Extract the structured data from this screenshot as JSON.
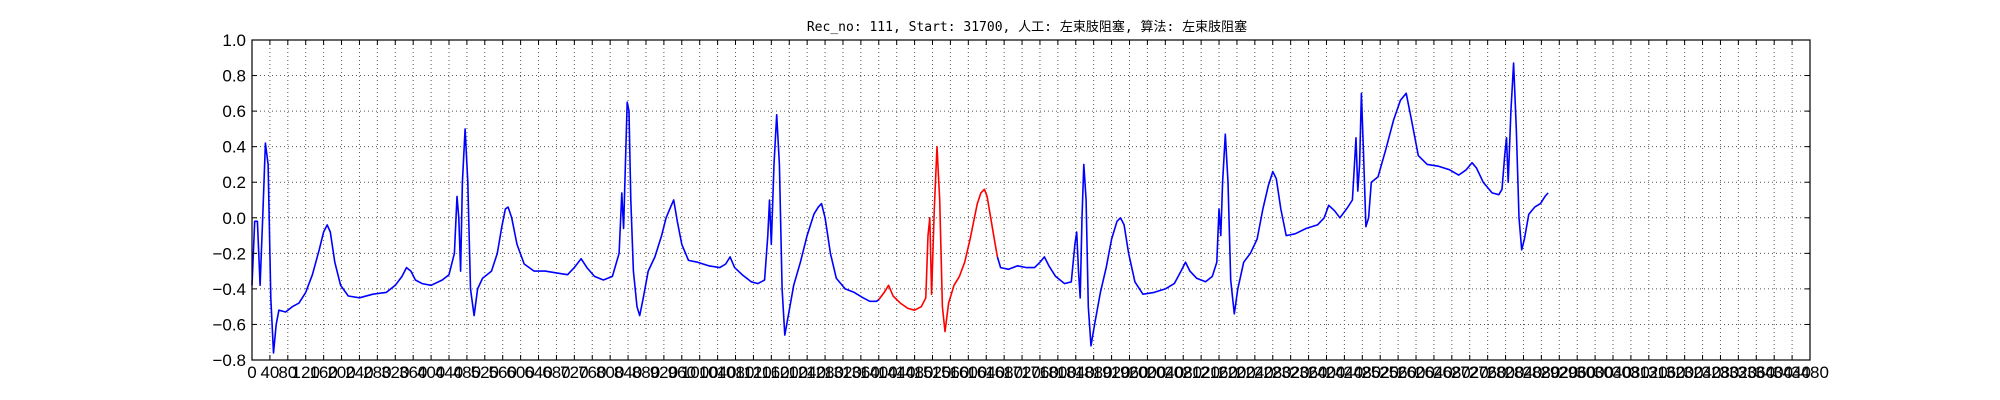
{
  "chart_data": {
    "type": "line",
    "title": "Rec_no: 111, Start: 31700, 人工: 左束肢阻塞, 算法: 左束肢阻塞",
    "xlabel": "",
    "ylabel": "",
    "xlim": [
      0,
      3480
    ],
    "ylim": [
      -0.8,
      1.0
    ],
    "yticks": [
      "−0.8",
      "−0.6",
      "−0.4",
      "−0.2",
      "0.0",
      "0.2",
      "0.4",
      "0.6",
      "0.8",
      "1.0"
    ],
    "xtick_labels": [
      "0",
      "40",
      "80",
      "120",
      "160",
      "200",
      "240",
      "280",
      "320",
      "360",
      "400",
      "440",
      "480",
      "520",
      "560",
      "600",
      "640",
      "680",
      "720",
      "760",
      "800",
      "840",
      "880",
      "920",
      "960",
      "1000",
      "1040",
      "1080",
      "1120",
      "1160",
      "1200",
      "1240",
      "1280",
      "1320",
      "1360",
      "1400",
      "1440",
      "1480",
      "1520",
      "1560",
      "1600",
      "1640",
      "1680",
      "1720",
      "1760",
      "1800",
      "1840",
      "1880",
      "1920",
      "1960",
      "2000",
      "2040",
      "2080",
      "2120",
      "2160",
      "2200",
      "2240",
      "2280",
      "2320",
      "2360",
      "2400",
      "2440",
      "2480",
      "2520",
      "2560",
      "2600",
      "2640",
      "2680",
      "2720",
      "2760",
      "2800",
      "2840",
      "2880",
      "2920",
      "2960",
      "3000",
      "3040",
      "3080",
      "3120",
      "3160",
      "3200",
      "3240",
      "3280",
      "3320",
      "3360",
      "3400",
      "3440",
      "3480"
    ],
    "grid": true,
    "colors": {
      "normal": "#0000ff",
      "highlight": "#ff0000"
    },
    "series": [
      {
        "color": "blue",
        "points": [
          [
            0,
            -0.38
          ],
          [
            6,
            -0.02
          ],
          [
            12,
            -0.02
          ],
          [
            18,
            -0.38
          ],
          [
            24,
            0.0
          ],
          [
            30,
            0.42
          ],
          [
            36,
            0.3
          ],
          [
            42,
            -0.45
          ],
          [
            48,
            -0.76
          ],
          [
            54,
            -0.6
          ],
          [
            60,
            -0.52
          ],
          [
            75,
            -0.53
          ],
          [
            90,
            -0.5
          ],
          [
            105,
            -0.48
          ],
          [
            120,
            -0.42
          ],
          [
            135,
            -0.32
          ],
          [
            150,
            -0.18
          ],
          [
            160,
            -0.08
          ],
          [
            168,
            -0.04
          ],
          [
            175,
            -0.08
          ],
          [
            185,
            -0.25
          ],
          [
            198,
            -0.38
          ],
          [
            215,
            -0.44
          ],
          [
            240,
            -0.45
          ],
          [
            270,
            -0.43
          ],
          [
            300,
            -0.42
          ],
          [
            320,
            -0.38
          ],
          [
            335,
            -0.33
          ],
          [
            345,
            -0.28
          ],
          [
            355,
            -0.3
          ],
          [
            365,
            -0.35
          ],
          [
            380,
            -0.37
          ],
          [
            400,
            -0.38
          ],
          [
            425,
            -0.35
          ],
          [
            440,
            -0.32
          ],
          [
            452,
            -0.2
          ],
          [
            458,
            0.12
          ],
          [
            462,
            0.0
          ],
          [
            466,
            -0.3
          ],
          [
            470,
            0.2
          ],
          [
            476,
            0.5
          ],
          [
            482,
            0.2
          ],
          [
            488,
            -0.4
          ],
          [
            496,
            -0.55
          ],
          [
            504,
            -0.4
          ],
          [
            515,
            -0.34
          ],
          [
            535,
            -0.3
          ],
          [
            548,
            -0.2
          ],
          [
            558,
            -0.05
          ],
          [
            566,
            0.05
          ],
          [
            572,
            0.06
          ],
          [
            580,
            0.0
          ],
          [
            592,
            -0.15
          ],
          [
            608,
            -0.26
          ],
          [
            630,
            -0.3
          ],
          [
            655,
            -0.3
          ],
          [
            680,
            -0.31
          ],
          [
            705,
            -0.32
          ],
          [
            720,
            -0.28
          ],
          [
            735,
            -0.23
          ],
          [
            748,
            -0.28
          ],
          [
            765,
            -0.33
          ],
          [
            785,
            -0.35
          ],
          [
            805,
            -0.33
          ],
          [
            820,
            -0.2
          ],
          [
            826,
            0.14
          ],
          [
            830,
            -0.06
          ],
          [
            834,
            0.3
          ],
          [
            838,
            0.65
          ],
          [
            842,
            0.6
          ],
          [
            846,
            0.1
          ],
          [
            852,
            -0.3
          ],
          [
            860,
            -0.5
          ],
          [
            866,
            -0.55
          ],
          [
            874,
            -0.45
          ],
          [
            885,
            -0.3
          ],
          [
            900,
            -0.22
          ],
          [
            915,
            -0.1
          ],
          [
            925,
            0.0
          ],
          [
            935,
            0.06
          ],
          [
            942,
            0.1
          ],
          [
            950,
            -0.02
          ],
          [
            960,
            -0.15
          ],
          [
            975,
            -0.24
          ],
          [
            995,
            -0.25
          ],
          [
            1020,
            -0.27
          ],
          [
            1045,
            -0.28
          ],
          [
            1058,
            -0.26
          ],
          [
            1068,
            -0.22
          ],
          [
            1078,
            -0.28
          ],
          [
            1095,
            -0.32
          ],
          [
            1115,
            -0.36
          ],
          [
            1130,
            -0.37
          ],
          [
            1145,
            -0.35
          ],
          [
            1152,
            -0.1
          ],
          [
            1156,
            0.1
          ],
          [
            1160,
            -0.15
          ],
          [
            1166,
            0.3
          ],
          [
            1172,
            0.58
          ],
          [
            1178,
            0.3
          ],
          [
            1184,
            -0.4
          ],
          [
            1190,
            -0.66
          ],
          [
            1198,
            -0.55
          ],
          [
            1210,
            -0.38
          ],
          [
            1225,
            -0.25
          ],
          [
            1240,
            -0.1
          ],
          [
            1255,
            0.02
          ],
          [
            1265,
            0.06
          ],
          [
            1272,
            0.08
          ],
          [
            1280,
            0.0
          ],
          [
            1292,
            -0.2
          ],
          [
            1305,
            -0.34
          ],
          [
            1325,
            -0.4
          ],
          [
            1345,
            -0.42
          ],
          [
            1365,
            -0.45
          ],
          [
            1380,
            -0.47
          ],
          [
            1395,
            -0.47
          ],
          [
            1400,
            -0.46
          ]
        ]
      },
      {
        "color": "red",
        "points": [
          [
            1400,
            -0.46
          ],
          [
            1412,
            -0.42
          ],
          [
            1422,
            -0.38
          ],
          [
            1432,
            -0.44
          ],
          [
            1448,
            -0.48
          ],
          [
            1465,
            -0.51
          ],
          [
            1480,
            -0.52
          ],
          [
            1495,
            -0.5
          ],
          [
            1505,
            -0.45
          ],
          [
            1510,
            -0.1
          ],
          [
            1514,
            0.0
          ],
          [
            1518,
            -0.43
          ],
          [
            1524,
            0.05
          ],
          [
            1530,
            0.4
          ],
          [
            1536,
            0.1
          ],
          [
            1542,
            -0.5
          ],
          [
            1548,
            -0.64
          ],
          [
            1556,
            -0.48
          ],
          [
            1568,
            -0.38
          ],
          [
            1580,
            -0.33
          ],
          [
            1592,
            -0.25
          ],
          [
            1604,
            -0.12
          ],
          [
            1612,
            -0.02
          ],
          [
            1620,
            0.08
          ],
          [
            1628,
            0.14
          ],
          [
            1636,
            0.16
          ],
          [
            1642,
            0.12
          ],
          [
            1650,
            0.0
          ],
          [
            1658,
            -0.12
          ],
          [
            1665,
            -0.22
          ]
        ]
      },
      {
        "color": "blue",
        "points": [
          [
            1665,
            -0.22
          ],
          [
            1672,
            -0.28
          ],
          [
            1690,
            -0.29
          ],
          [
            1710,
            -0.27
          ],
          [
            1730,
            -0.28
          ],
          [
            1748,
            -0.28
          ],
          [
            1760,
            -0.25
          ],
          [
            1770,
            -0.22
          ],
          [
            1780,
            -0.27
          ],
          [
            1795,
            -0.33
          ],
          [
            1815,
            -0.37
          ],
          [
            1830,
            -0.36
          ],
          [
            1838,
            -0.15
          ],
          [
            1842,
            -0.08
          ],
          [
            1846,
            -0.3
          ],
          [
            1850,
            -0.45
          ],
          [
            1854,
            0.0
          ],
          [
            1858,
            0.3
          ],
          [
            1863,
            0.1
          ],
          [
            1868,
            -0.5
          ],
          [
            1874,
            -0.72
          ],
          [
            1882,
            -0.6
          ],
          [
            1895,
            -0.42
          ],
          [
            1908,
            -0.28
          ],
          [
            1920,
            -0.12
          ],
          [
            1932,
            -0.02
          ],
          [
            1940,
            0.0
          ],
          [
            1948,
            -0.04
          ],
          [
            1958,
            -0.2
          ],
          [
            1972,
            -0.36
          ],
          [
            1990,
            -0.43
          ],
          [
            2015,
            -0.42
          ],
          [
            2040,
            -0.4
          ],
          [
            2060,
            -0.37
          ],
          [
            2075,
            -0.3
          ],
          [
            2085,
            -0.25
          ],
          [
            2095,
            -0.3
          ],
          [
            2110,
            -0.34
          ],
          [
            2130,
            -0.36
          ],
          [
            2145,
            -0.33
          ],
          [
            2155,
            -0.25
          ],
          [
            2160,
            0.05
          ],
          [
            2164,
            -0.1
          ],
          [
            2168,
            0.2
          ],
          [
            2174,
            0.47
          ],
          [
            2180,
            0.2
          ],
          [
            2186,
            -0.35
          ],
          [
            2194,
            -0.54
          ],
          [
            2202,
            -0.4
          ],
          [
            2215,
            -0.25
          ],
          [
            2230,
            -0.2
          ],
          [
            2245,
            -0.12
          ],
          [
            2258,
            0.05
          ],
          [
            2270,
            0.18
          ],
          [
            2280,
            0.26
          ],
          [
            2288,
            0.22
          ],
          [
            2298,
            0.05
          ],
          [
            2310,
            -0.1
          ],
          [
            2330,
            -0.09
          ],
          [
            2355,
            -0.06
          ],
          [
            2380,
            -0.04
          ],
          [
            2395,
            0.0
          ],
          [
            2405,
            0.07
          ],
          [
            2418,
            0.04
          ],
          [
            2430,
            0.0
          ],
          [
            2445,
            0.05
          ],
          [
            2458,
            0.1
          ],
          [
            2466,
            0.45
          ],
          [
            2470,
            0.15
          ],
          [
            2474,
            0.3
          ],
          [
            2478,
            0.7
          ],
          [
            2483,
            0.35
          ],
          [
            2488,
            -0.05
          ],
          [
            2494,
            0.0
          ],
          [
            2500,
            0.2
          ],
          [
            2515,
            0.23
          ],
          [
            2532,
            0.38
          ],
          [
            2550,
            0.55
          ],
          [
            2565,
            0.66
          ],
          [
            2578,
            0.7
          ],
          [
            2590,
            0.55
          ],
          [
            2605,
            0.35
          ],
          [
            2625,
            0.3
          ],
          [
            2650,
            0.29
          ],
          [
            2675,
            0.27
          ],
          [
            2695,
            0.24
          ],
          [
            2712,
            0.27
          ],
          [
            2725,
            0.31
          ],
          [
            2735,
            0.28
          ],
          [
            2750,
            0.2
          ],
          [
            2770,
            0.14
          ],
          [
            2785,
            0.13
          ],
          [
            2792,
            0.16
          ],
          [
            2798,
            0.35
          ],
          [
            2802,
            0.45
          ],
          [
            2806,
            0.2
          ],
          [
            2812,
            0.6
          ],
          [
            2818,
            0.87
          ],
          [
            2824,
            0.5
          ],
          [
            2830,
            0.0
          ],
          [
            2836,
            -0.18
          ],
          [
            2842,
            -0.12
          ],
          [
            2852,
            0.02
          ],
          [
            2865,
            0.06
          ],
          [
            2878,
            0.08
          ],
          [
            2888,
            0.12
          ],
          [
            2895,
            0.14
          ]
        ]
      }
    ]
  }
}
